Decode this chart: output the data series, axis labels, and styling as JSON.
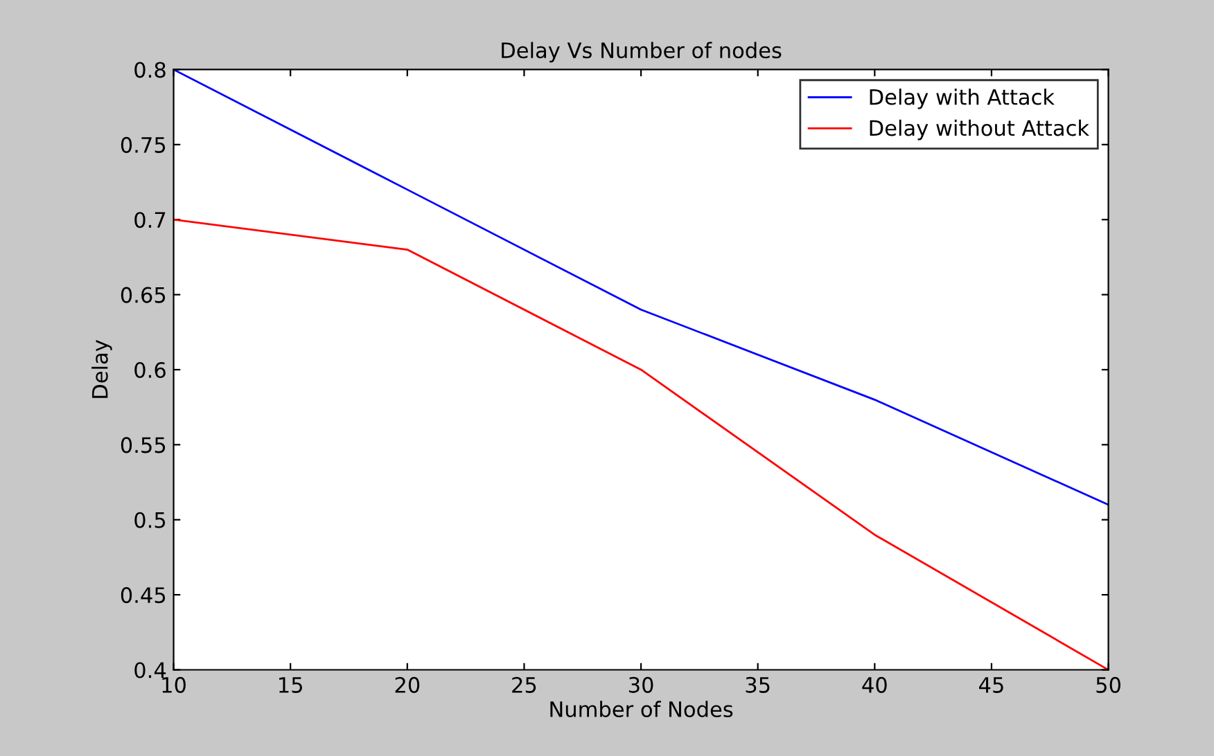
{
  "chart_data": {
    "type": "line",
    "title": "Delay Vs Number of nodes",
    "xlabel": "Number of Nodes",
    "ylabel": "Delay",
    "x": [
      10,
      20,
      30,
      40,
      50
    ],
    "series": [
      {
        "name": "Delay with Attack",
        "color": "#0000ff",
        "values": [
          0.8,
          0.72,
          0.64,
          0.58,
          0.51
        ]
      },
      {
        "name": "Delay without Attack",
        "color": "#ff0000",
        "values": [
          0.7,
          0.68,
          0.6,
          0.49,
          0.4
        ]
      }
    ],
    "xlim": [
      10,
      50
    ],
    "xticks": [
      10,
      15,
      20,
      25,
      30,
      35,
      40,
      45,
      50
    ],
    "ylim": [
      0.4,
      0.8
    ],
    "yticks": [
      0.4,
      0.45,
      0.5,
      0.55,
      0.6,
      0.65,
      0.7,
      0.75,
      0.8
    ],
    "grid": false,
    "legend": "top right",
    "line_style": "solid"
  }
}
